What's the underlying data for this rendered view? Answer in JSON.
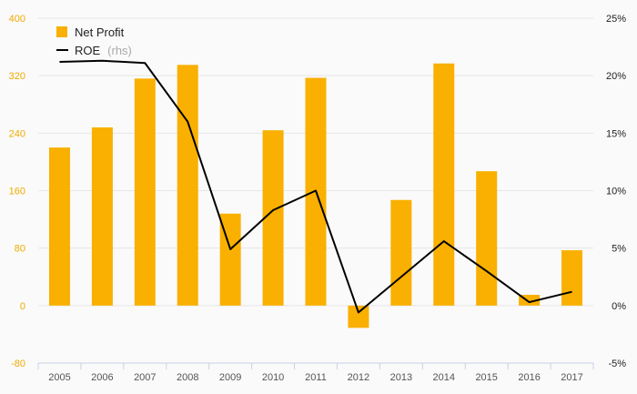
{
  "chart_data": {
    "type": "bar",
    "categories": [
      "2005",
      "2006",
      "2007",
      "2008",
      "2009",
      "2010",
      "2011",
      "2012",
      "2013",
      "2014",
      "2015",
      "2016",
      "2017"
    ],
    "series": [
      {
        "name": "Net Profit",
        "type": "bar",
        "axis": "left",
        "color": "#f9b000",
        "values": [
          220,
          248,
          316,
          335,
          128,
          244,
          317,
          -31,
          147,
          337,
          187,
          15,
          77
        ]
      },
      {
        "name": "ROE",
        "name_suffix": "(rhs)",
        "type": "line",
        "axis": "right",
        "color": "#000000",
        "values": [
          21.2,
          21.3,
          21.1,
          16.0,
          4.9,
          8.3,
          10.0,
          -0.6,
          2.5,
          5.6,
          3.0,
          0.3,
          1.2
        ]
      }
    ],
    "y_left": {
      "range": [
        -80,
        400
      ],
      "ticks": [
        -80,
        0,
        80,
        160,
        240,
        320,
        400
      ],
      "labels": [
        "-80",
        "0",
        "80",
        "160",
        "240",
        "320",
        "400"
      ]
    },
    "y_right": {
      "range": [
        -5,
        25
      ],
      "ticks": [
        -5,
        0,
        5,
        10,
        15,
        20,
        25
      ],
      "labels": [
        "-5%",
        "0%",
        "5%",
        "10%",
        "15%",
        "20%",
        "25%"
      ]
    },
    "grid": true,
    "legend_position": "top-left"
  }
}
